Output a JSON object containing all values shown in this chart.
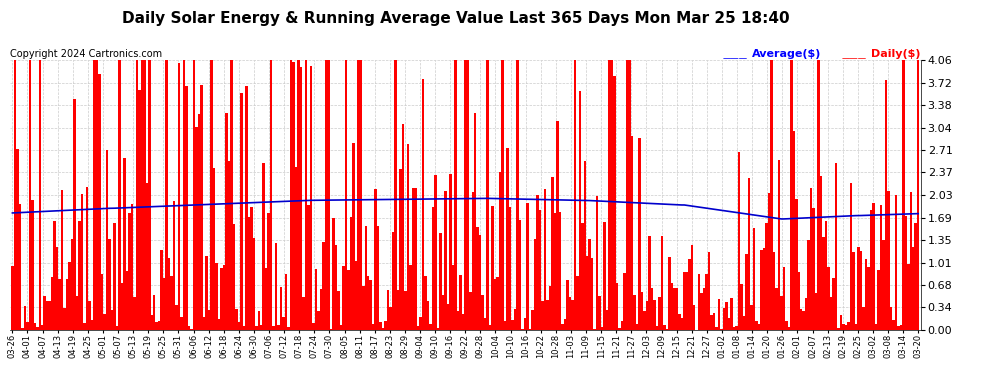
{
  "title": "Daily Solar Energy & Running Average Value Last 365 Days Mon Mar 25 18:40",
  "copyright": "Copyright 2024 Cartronics.com",
  "legend_average": "Average($)",
  "legend_daily": "Daily($)",
  "bar_color": "#ff0000",
  "average_line_color": "#0000cc",
  "legend_avg_color": "#0000ff",
  "legend_daily_color": "#ff0000",
  "ylim": [
    0.0,
    4.06
  ],
  "yticks": [
    0.0,
    0.34,
    0.68,
    1.01,
    1.35,
    1.69,
    2.03,
    2.37,
    2.71,
    3.04,
    3.38,
    3.72,
    4.06
  ],
  "background_color": "#ffffff",
  "grid_color": "#cccccc",
  "title_fontsize": 11,
  "copyright_fontsize": 7,
  "x_labels": [
    "03-26",
    "04-01",
    "04-07",
    "04-13",
    "04-19",
    "04-25",
    "05-01",
    "05-07",
    "05-13",
    "05-19",
    "05-25",
    "05-31",
    "06-06",
    "06-12",
    "06-18",
    "06-24",
    "06-30",
    "07-06",
    "07-12",
    "07-18",
    "07-24",
    "07-30",
    "08-05",
    "08-11",
    "08-17",
    "08-23",
    "08-29",
    "09-04",
    "09-10",
    "09-16",
    "09-22",
    "09-28",
    "10-04",
    "10-10",
    "10-16",
    "10-22",
    "10-28",
    "11-03",
    "11-09",
    "11-15",
    "11-21",
    "11-27",
    "12-03",
    "12-09",
    "12-15",
    "12-21",
    "12-27",
    "01-02",
    "01-08",
    "01-14",
    "01-20",
    "01-26",
    "02-01",
    "02-07",
    "02-13",
    "02-19",
    "02-25",
    "03-02",
    "03-08",
    "03-14",
    "03-20"
  ],
  "num_bars": 365,
  "seed": 42
}
